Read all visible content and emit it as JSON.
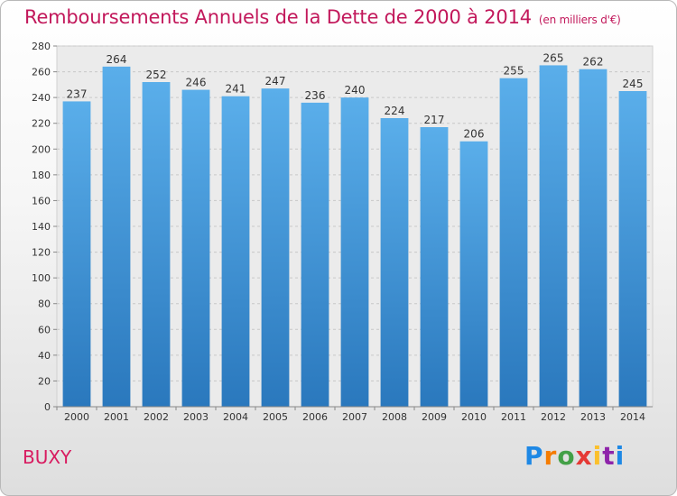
{
  "chart_data": {
    "type": "bar",
    "title": "Remboursements Annuels de la Dette de 2000 à 2014",
    "subtitle": "(en milliers d'€)",
    "categories": [
      "2000",
      "2001",
      "2002",
      "2003",
      "2004",
      "2005",
      "2006",
      "2007",
      "2008",
      "2009",
      "2010",
      "2011",
      "2012",
      "2013",
      "2014"
    ],
    "values": [
      237,
      264,
      252,
      246,
      241,
      247,
      236,
      240,
      224,
      217,
      206,
      255,
      265,
      262,
      245
    ],
    "ylim": [
      0,
      280
    ],
    "yticks": [
      0,
      20,
      40,
      60,
      80,
      100,
      120,
      140,
      160,
      180,
      200,
      220,
      240,
      260,
      280
    ],
    "grid": true,
    "bar_color_top": "#5aaeea",
    "bar_color_bottom": "#2a78bd"
  },
  "commune": "BUXY",
  "logo": "Proxiti"
}
